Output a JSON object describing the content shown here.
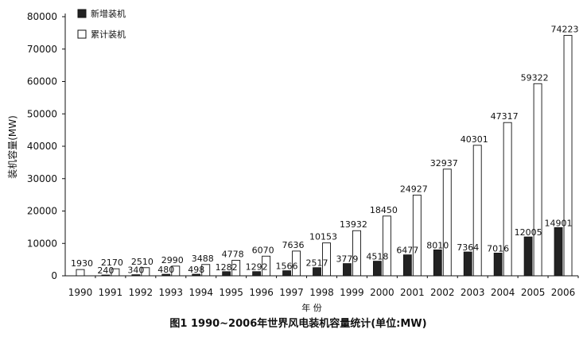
{
  "chart_data": {
    "type": "bar",
    "title": "图1 1990~2006年世界风电装机容量统计(单位:MW)",
    "xlabel": "年 份",
    "ylabel": "装机容量(MW)",
    "ylim": [
      0,
      80000
    ],
    "yticks": [
      0,
      10000,
      20000,
      30000,
      40000,
      50000,
      60000,
      70000,
      80000
    ],
    "grid": false,
    "legend_position": "top-left",
    "categories": [
      "1990",
      "1991",
      "1992",
      "1993",
      "1994",
      "1995",
      "1996",
      "1997",
      "1998",
      "1999",
      "2000",
      "2001",
      "2002",
      "2003",
      "2004",
      "2005",
      "2006"
    ],
    "series": [
      {
        "name": "新增装机",
        "color": "#222222",
        "values": [
          null,
          240,
          340,
          480,
          498,
          1282,
          1292,
          1566,
          2517,
          3779,
          4518,
          6477,
          8010,
          7364,
          7016,
          12005,
          14901
        ],
        "labels": [
          "",
          "240",
          "340",
          "480",
          "498",
          "1282",
          "1292",
          "1566",
          "2517",
          "3779",
          "4518",
          "6477",
          "8010",
          "7364",
          "7016",
          "12005",
          "14901"
        ]
      },
      {
        "name": "累计装机",
        "color": "#ffffff",
        "values": [
          1930,
          2170,
          2510,
          2990,
          3488,
          4778,
          6070,
          7636,
          10153,
          13932,
          18450,
          24927,
          32937,
          40301,
          47317,
          59322,
          74223
        ],
        "labels": [
          "1930",
          "2170",
          "2510",
          "2990",
          "3488",
          "4778",
          "6070",
          "7636",
          "10153",
          "13932",
          "18450",
          "24927",
          "32937",
          "40301",
          "47317",
          "59322",
          "74223"
        ]
      }
    ]
  }
}
